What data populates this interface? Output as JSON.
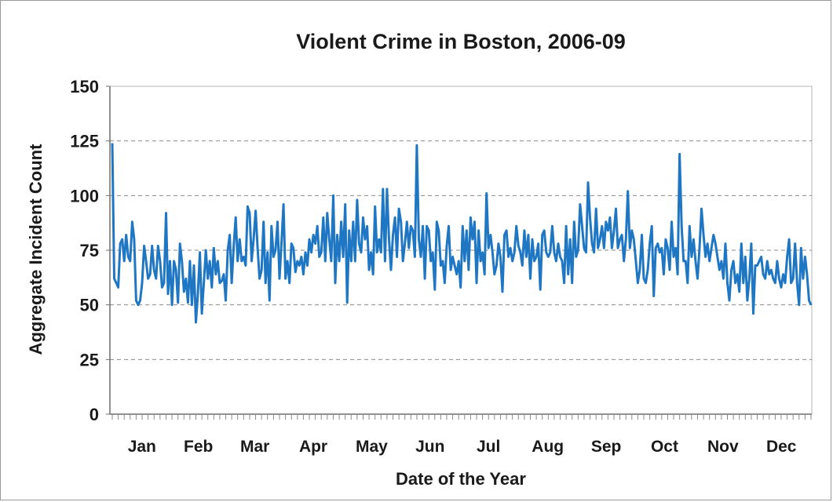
{
  "chart_data": {
    "type": "line",
    "title": "Violent Crime in Boston, 2006-09",
    "xlabel": "Date of the Year",
    "ylabel": "Aggregate Incident Count",
    "ylim": [
      0,
      150
    ],
    "yticks": [
      0,
      25,
      50,
      75,
      100,
      125,
      150
    ],
    "grid": "horizontal dashed",
    "legend": "none",
    "colors": {
      "line": "#1f77c4",
      "grid": "#8a8a8a",
      "axis": "#6e6e6e"
    },
    "x_month_labels": [
      "Jan",
      "Feb",
      "Mar",
      "Apr",
      "May",
      "Jun",
      "Jul",
      "Aug",
      "Sep",
      "Oct",
      "Nov",
      "Dec"
    ],
    "series": [
      {
        "x_unit": "day of year",
        "values": [
          124,
          62,
          60,
          58,
          78,
          80,
          70,
          82,
          72,
          70,
          88,
          80,
          52,
          50,
          52,
          60,
          77,
          70,
          62,
          64,
          77,
          66,
          62,
          77,
          70,
          58,
          60,
          92,
          55,
          70,
          50,
          70,
          66,
          51,
          78,
          70,
          56,
          62,
          51,
          70,
          50,
          68,
          42,
          55,
          74,
          46,
          60,
          75,
          62,
          70,
          58,
          76,
          64,
          70,
          60,
          61,
          64,
          52,
          75,
          82,
          60,
          77,
          90,
          70,
          80,
          70,
          72,
          68,
          95,
          92,
          70,
          80,
          93,
          76,
          62,
          66,
          88,
          60,
          74,
          52,
          86,
          72,
          75,
          88,
          62,
          78,
          96,
          62,
          70,
          60,
          78,
          76,
          65,
          70,
          68,
          72,
          64,
          74,
          68,
          80,
          74,
          82,
          78,
          86,
          72,
          74,
          90,
          70,
          92,
          80,
          70,
          100,
          60,
          82,
          70,
          88,
          72,
          96,
          51,
          84,
          70,
          88,
          70,
          98,
          78,
          74,
          90,
          80,
          86,
          66,
          74,
          64,
          95,
          74,
          80,
          74,
          103,
          70,
          103,
          80,
          66,
          82,
          90,
          72,
          94,
          88,
          70,
          78,
          88,
          76,
          86,
          84,
          72,
          123,
          80,
          72,
          86,
          62,
          86,
          84,
          70,
          74,
          57,
          88,
          84,
          68,
          70,
          60,
          77,
          86,
          66,
          72,
          68,
          64,
          70,
          58,
          86,
          70,
          84,
          66,
          90,
          80,
          88,
          60,
          84,
          70,
          74,
          64,
          101,
          76,
          82,
          74,
          64,
          68,
          78,
          72,
          56,
          82,
          84,
          72,
          76,
          70,
          74,
          86,
          77,
          74,
          68,
          84,
          72,
          82,
          62,
          80,
          70,
          72,
          78,
          57,
          82,
          84,
          74,
          72,
          74,
          86,
          74,
          70,
          78,
          72,
          70,
          60,
          86,
          64,
          80,
          60,
          88,
          72,
          75,
          96,
          86,
          76,
          74,
          106,
          90,
          78,
          74,
          94,
          76,
          80,
          86,
          76,
          88,
          84,
          90,
          76,
          84,
          94,
          76,
          80,
          82,
          70,
          80,
          102,
          76,
          84,
          80,
          70,
          60,
          66,
          82,
          62,
          60,
          66,
          78,
          86,
          54,
          76,
          78,
          74,
          76,
          64,
          80,
          76,
          66,
          88,
          72,
          76,
          64,
          119,
          86,
          70,
          70,
          60,
          86,
          72,
          80,
          70,
          62,
          76,
          94,
          82,
          72,
          78,
          70,
          76,
          82,
          78,
          72,
          66,
          70,
          62,
          78,
          60,
          52,
          66,
          70,
          60,
          64,
          56,
          78,
          60,
          72,
          52,
          62,
          78,
          46,
          68,
          68,
          70,
          72,
          64,
          62,
          70,
          64,
          66,
          62,
          60,
          70,
          62,
          58,
          64,
          60,
          72,
          80,
          60,
          62,
          78,
          60,
          50,
          76,
          62,
          72,
          64,
          52,
          50
        ]
      }
    ]
  }
}
